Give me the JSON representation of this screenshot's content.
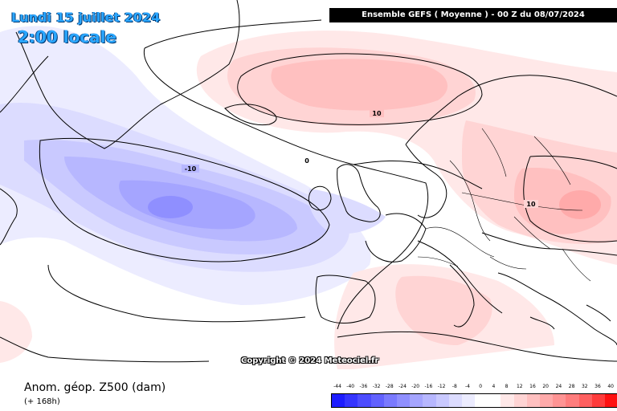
{
  "header": {
    "date": "Lundi 15 juillet 2024",
    "time": "2:00 locale",
    "model_run": "Ensemble GEFS  ( Moyenne )  -  00 Z du 08/07/2024"
  },
  "map": {
    "contours": [
      {
        "label": "10",
        "color": "#000000"
      },
      {
        "label": "-10",
        "color": "#000000"
      },
      {
        "label": "0",
        "color": "#000000"
      },
      {
        "label": "10",
        "color": "#000000"
      }
    ],
    "copyright": "Copyright © 2024 Meteociel.fr"
  },
  "footer": {
    "variable": "Anom. géop. Z500 (dam)",
    "lead": "(+ 168h)"
  },
  "legend": {
    "labels": [
      "-44",
      "-40",
      "-36",
      "-32",
      "-28",
      "-24",
      "-20",
      "-16",
      "-12",
      "-8",
      "-4",
      "0",
      "4",
      "8",
      "12",
      "16",
      "20",
      "24",
      "28",
      "32",
      "36",
      "40"
    ],
    "colors": [
      "#1d1dff",
      "#3535ff",
      "#4d4dff",
      "#6262ff",
      "#7a7aff",
      "#8f8fff",
      "#a5a5ff",
      "#b7b7ff",
      "#c9c9ff",
      "#dcdcff",
      "#ececff",
      "#ffffff",
      "#ffffff",
      "#ffe8e8",
      "#ffd4d4",
      "#ffc0c0",
      "#ffaaaa",
      "#ff9494",
      "#ff7d7d",
      "#ff6060",
      "#ff3c3c",
      "#ff1010"
    ]
  }
}
